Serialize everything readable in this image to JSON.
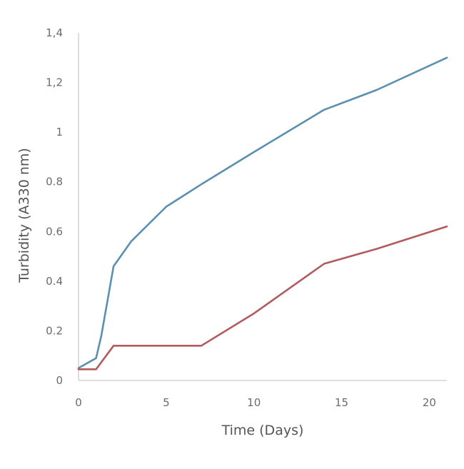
{
  "chart_data": {
    "type": "line",
    "title": "",
    "xlabel": "Time (Days)",
    "ylabel": "Turbidity (A330 nm)",
    "xlim": [
      0,
      21
    ],
    "ylim": [
      0,
      1.4
    ],
    "x_ticks": [
      {
        "value": 0,
        "label": "0"
      },
      {
        "value": 5,
        "label": "5"
      },
      {
        "value": 10,
        "label": "10"
      },
      {
        "value": 15,
        "label": "15"
      },
      {
        "value": 20,
        "label": "20"
      }
    ],
    "y_ticks": [
      {
        "value": 0,
        "label": "0"
      },
      {
        "value": 0.2,
        "label": "0.2"
      },
      {
        "value": 0.4,
        "label": "0.4"
      },
      {
        "value": 0.6,
        "label": "0.6"
      },
      {
        "value": 0.8,
        "label": "0.8"
      },
      {
        "value": 1.0,
        "label": "1"
      },
      {
        "value": 1.2,
        "label": "1,2"
      },
      {
        "value": 1.4,
        "label": "1,4"
      }
    ],
    "grid": false,
    "legend": "none",
    "series": [
      {
        "color": "#5b8fb0",
        "points": [
          [
            0,
            0.05
          ],
          [
            1,
            0.09
          ],
          [
            1.3,
            0.18
          ],
          [
            2,
            0.46
          ],
          [
            3,
            0.56
          ],
          [
            5,
            0.7
          ],
          [
            7,
            0.79
          ],
          [
            10,
            0.92
          ],
          [
            14,
            1.09
          ],
          [
            17,
            1.17
          ],
          [
            21,
            1.3
          ]
        ]
      },
      {
        "color": "#b25a5e",
        "points": [
          [
            0,
            0.045
          ],
          [
            1,
            0.045
          ],
          [
            2,
            0.14
          ],
          [
            7,
            0.14
          ],
          [
            10,
            0.27
          ],
          [
            14,
            0.47
          ],
          [
            17,
            0.53
          ],
          [
            21,
            0.62
          ]
        ]
      }
    ]
  }
}
